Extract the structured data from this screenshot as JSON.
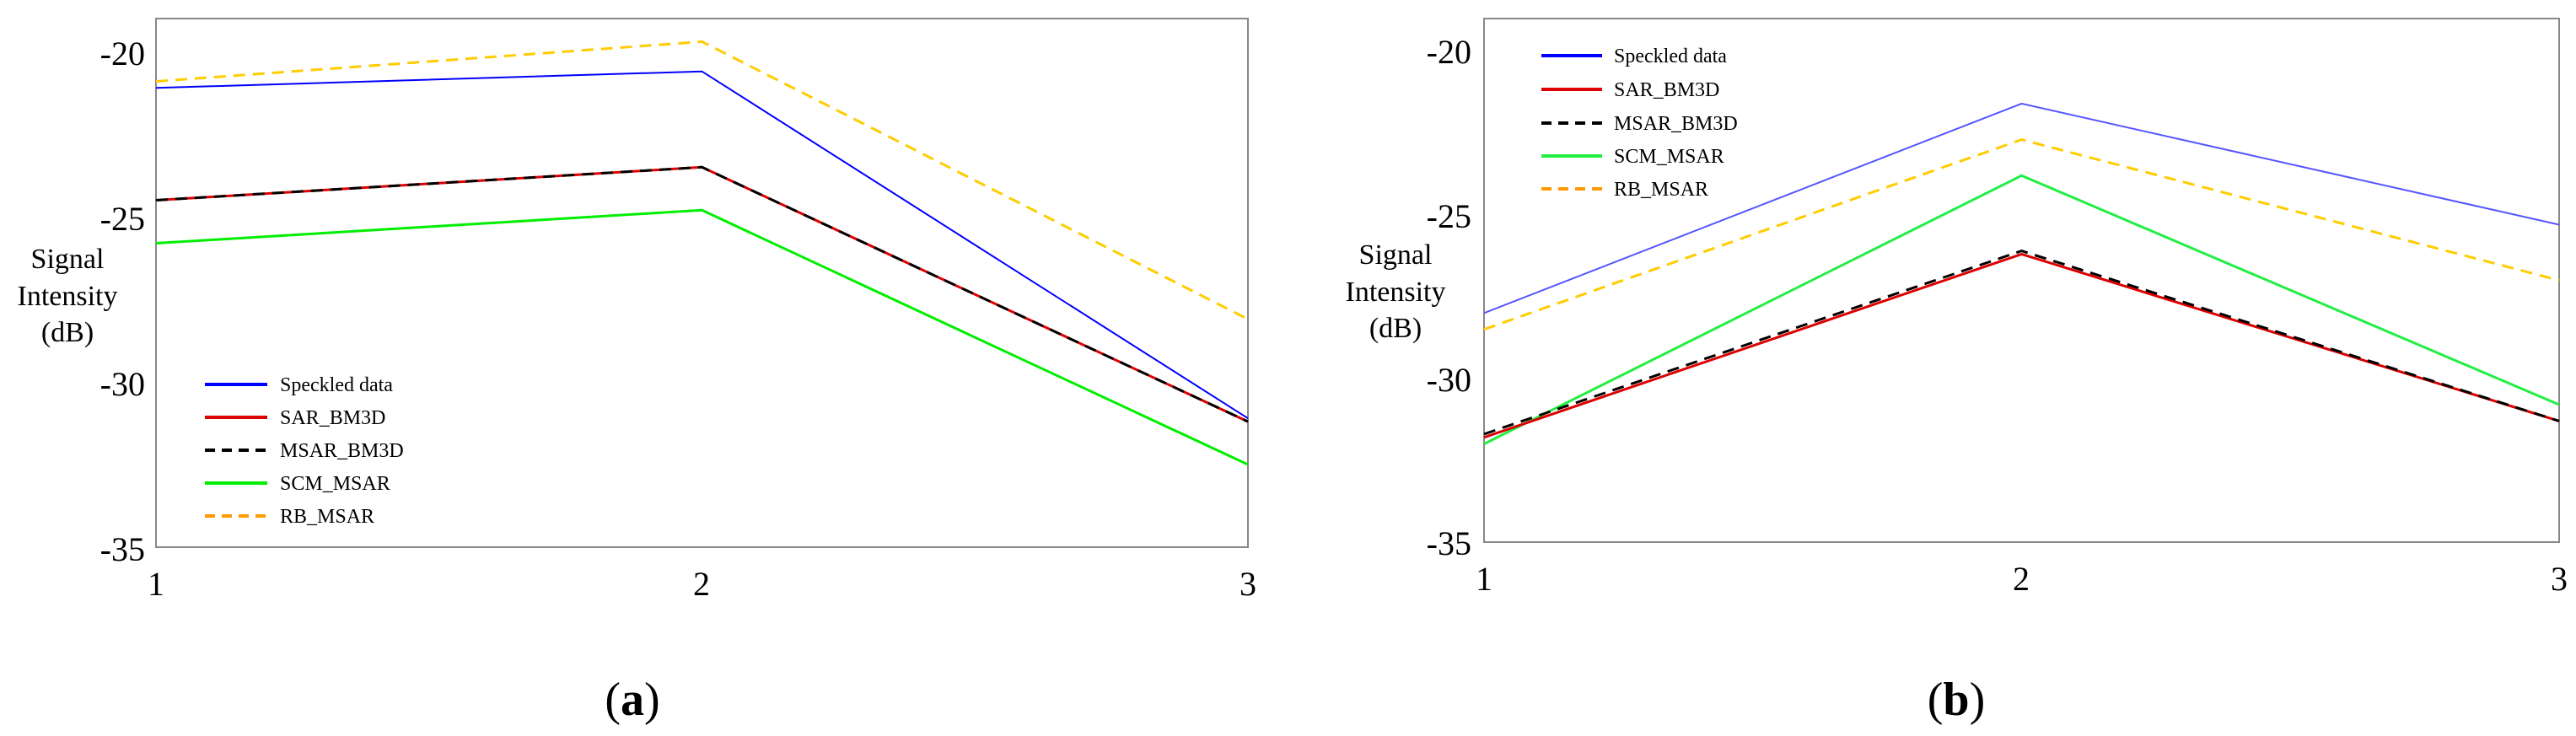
{
  "chart_data": [
    {
      "type": "line",
      "panel_label": {
        "open": "(",
        "letter": "a",
        "close": ")"
      },
      "title": "",
      "xlabel": "",
      "ylabel_lines": [
        "Signal",
        "Intensity",
        "(dB)"
      ],
      "x": [
        1,
        2,
        3
      ],
      "xlim": [
        1,
        3
      ],
      "ylim": [
        -35,
        -19
      ],
      "xticks": [
        1,
        2,
        3
      ],
      "yticks": [
        -20,
        -25,
        -30,
        -35
      ],
      "grid": false,
      "legend_position": "bottom-left",
      "series": [
        {
          "name": "Speckled data",
          "values": [
            -21.1,
            -20.6,
            -31.1
          ],
          "color": "#0000ff",
          "style": "solid",
          "legend_color": "#0000ff"
        },
        {
          "name": "SAR_BM3D",
          "values": [
            -24.5,
            -23.5,
            -31.2
          ],
          "color": "#dd0000",
          "style": "solid",
          "legend_color": "#dd0000"
        },
        {
          "name": "MSAR_BM3D",
          "values": [
            -24.5,
            -23.5,
            -31.2
          ],
          "color": "#000000",
          "style": "dashed",
          "legend_color": "#000000"
        },
        {
          "name": "SCM_MSAR",
          "values": [
            -25.8,
            -24.8,
            -32.5
          ],
          "color": "#00ee00",
          "style": "solid",
          "legend_color": "#00ee00"
        },
        {
          "name": "RB_MSAR",
          "values": [
            -20.9,
            -19.7,
            -28.1
          ],
          "color": "#ffcc00",
          "style": "dashed",
          "legend_color": "#ff9900"
        }
      ]
    },
    {
      "type": "line",
      "panel_label": {
        "open": "(",
        "letter": "b",
        "close": ")"
      },
      "title": "",
      "xlabel": "",
      "ylabel_lines": [
        "Signal",
        "Intensity",
        "(dB)"
      ],
      "x": [
        1,
        2,
        3
      ],
      "xlim": [
        1,
        3
      ],
      "ylim": [
        -35,
        -19
      ],
      "xticks": [
        1,
        2,
        3
      ],
      "yticks": [
        -20,
        -25,
        -30,
        -35
      ],
      "grid": false,
      "legend_position": "top-left",
      "series": [
        {
          "name": "Speckled data",
          "values": [
            -28.0,
            -21.6,
            -25.3
          ],
          "color": "#5555ff",
          "style": "solid",
          "legend_color": "#0000ff"
        },
        {
          "name": "SAR_BM3D",
          "values": [
            -31.8,
            -26.2,
            -31.3
          ],
          "color": "#dd0000",
          "style": "solid",
          "legend_color": "#dd0000"
        },
        {
          "name": "MSAR_BM3D",
          "values": [
            -31.7,
            -26.1,
            -31.3
          ],
          "color": "#000000",
          "style": "dashed",
          "legend_color": "#000000"
        },
        {
          "name": "SCM_MSAR",
          "values": [
            -32.0,
            -23.8,
            -30.8
          ],
          "color": "#22ee44",
          "style": "solid",
          "legend_color": "#22ee44"
        },
        {
          "name": "RB_MSAR",
          "values": [
            -28.5,
            -22.7,
            -27.0
          ],
          "color": "#ffcc00",
          "style": "dashed",
          "legend_color": "#ff9900"
        }
      ]
    }
  ]
}
